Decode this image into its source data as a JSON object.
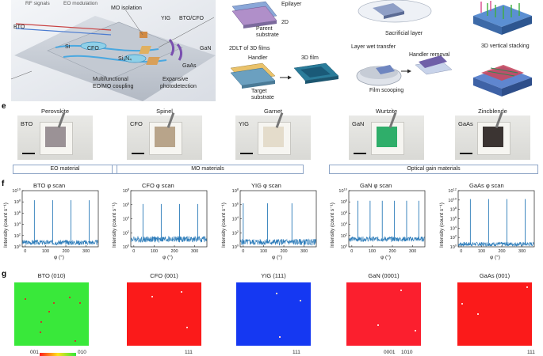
{
  "schematic_a": {
    "rf_signals": "RF signals",
    "eo_modulation": "EO modulation",
    "bto": "BTO",
    "mo_isolation": "MO isolation",
    "yig": "YIG",
    "bto_cfo": "BTO/CFO",
    "si": "Si",
    "cfo": "CFO",
    "gan": "GaN",
    "gaas": "GaAs",
    "si3n4": "Si₃N₄",
    "multifunctional": "Multifunctional",
    "eo_mo_coupling": "EO/MO coupling",
    "expansive": "Expansive",
    "photodetection": "photodetection"
  },
  "schematic_b": {
    "epilayer": "Epilayer",
    "two_d": "2D",
    "parent": "Parent",
    "substrate": "substrate",
    "dlt_title": "2DLT of 3D films",
    "handler": "Handler",
    "film_3d": "3D film",
    "target": "Target",
    "target_substrate": "substrate"
  },
  "schematic_c": {
    "sacrificial": "Sacrificial layer",
    "layer_wet": "Layer wet transfer",
    "handler_removal": "Handler removal",
    "film_scooping": "Film scooping"
  },
  "schematic_d": {
    "stacking": "3D vertical stacking"
  },
  "panel_e": {
    "letter": "e",
    "photos": [
      {
        "title": "Perovskite",
        "label": "BTO",
        "sample_color": "#9b9296"
      },
      {
        "title": "Spinel",
        "label": "CFO",
        "sample_color": "#b8a48a"
      },
      {
        "title": "Garnet",
        "label": "YIG",
        "sample_color": "#e4dccb"
      },
      {
        "title": "Wurtzite",
        "label": "GaN",
        "sample_color": "#2fae6a"
      },
      {
        "title": "Zincblende",
        "label": "GaAs",
        "sample_color": "#3b3432"
      }
    ],
    "categories": [
      "EO material",
      "MO materials",
      "Optical gain materials"
    ]
  },
  "panel_f": {
    "letter": "f",
    "color": "#2b7bb9",
    "ylabel": "Intensity (count s⁻¹)",
    "xlabel": "φ (°)"
  },
  "panel_g": {
    "letter": "g",
    "legend_low": "001",
    "legend_high": "010",
    "maps": [
      {
        "title": "BTO (010)",
        "color": "#39e83a"
      },
      {
        "title": "CFO (001)",
        "color": "#fb1a1a"
      },
      {
        "title": "YIG (111)",
        "color": "#1538f2"
      },
      {
        "title": "GaN (0001)",
        "color": "#fb1f2e"
      },
      {
        "title": "GaAs (001)",
        "color": "#fb1a1a"
      }
    ],
    "bottom_labels": [
      "111",
      "111",
      "0001",
      "1010",
      "111"
    ]
  },
  "chart_data": [
    {
      "type": "line",
      "title": "BTO φ scan",
      "xlabel": "φ (°)",
      "ylabel": "Intensity (count s⁻¹)",
      "ylog": true,
      "xlim": [
        -15,
        360
      ],
      "yticks_exp": [
        0,
        2,
        4,
        6,
        8,
        10
      ],
      "xticks": [
        0,
        100,
        200,
        300
      ],
      "peaks_x": [
        45,
        135,
        225,
        315
      ],
      "peak_exp": 8.3,
      "floor_exp": 0.6
    },
    {
      "type": "line",
      "title": "CFO φ scan",
      "xlabel": "φ (°)",
      "ylabel": "Intensity (count s⁻¹)",
      "ylog": true,
      "xlim": [
        -15,
        360
      ],
      "yticks_exp": [
        0,
        2,
        4,
        6,
        8
      ],
      "xticks": [
        0,
        100,
        200,
        300
      ],
      "peaks_x": [
        45,
        135,
        225,
        315
      ],
      "peak_exp": 6.1,
      "floor_exp": 0.9
    },
    {
      "type": "line",
      "title": "YIG φ scan",
      "xlabel": "φ (°)",
      "ylabel": "Intensity (count s⁻¹)",
      "ylog": true,
      "xlim": [
        -15,
        360
      ],
      "yticks_exp": [
        0,
        2,
        4,
        6,
        8
      ],
      "xticks": [
        0,
        100,
        200,
        300
      ],
      "peaks_x": [
        0,
        120,
        240
      ],
      "peak_exp": 6.2,
      "floor_exp": 0.5
    },
    {
      "type": "line",
      "title": "GaN φ scan",
      "xlabel": "φ (°)",
      "ylabel": "Intensity (count s⁻¹)",
      "ylog": true,
      "xlim": [
        -15,
        360
      ],
      "yticks_exp": [
        0,
        2,
        4,
        6,
        8,
        10
      ],
      "xticks": [
        0,
        100,
        200,
        300
      ],
      "peaks_x": [
        30,
        90,
        150,
        210,
        270,
        330
      ],
      "peak_exp": 8.2,
      "floor_exp": 1.2
    },
    {
      "type": "line",
      "title": "GaAs φ scan",
      "xlabel": "φ (°)",
      "ylabel": "Intensity (count s⁻¹)",
      "ylog": true,
      "xlim": [
        -15,
        360
      ],
      "yticks_exp": [
        0,
        2,
        4,
        6,
        8,
        10,
        12
      ],
      "xticks": [
        0,
        100,
        200,
        300
      ],
      "peaks_x": [
        45,
        135,
        225,
        315
      ],
      "peak_exp": 10.2,
      "floor_exp": 0.4
    }
  ]
}
